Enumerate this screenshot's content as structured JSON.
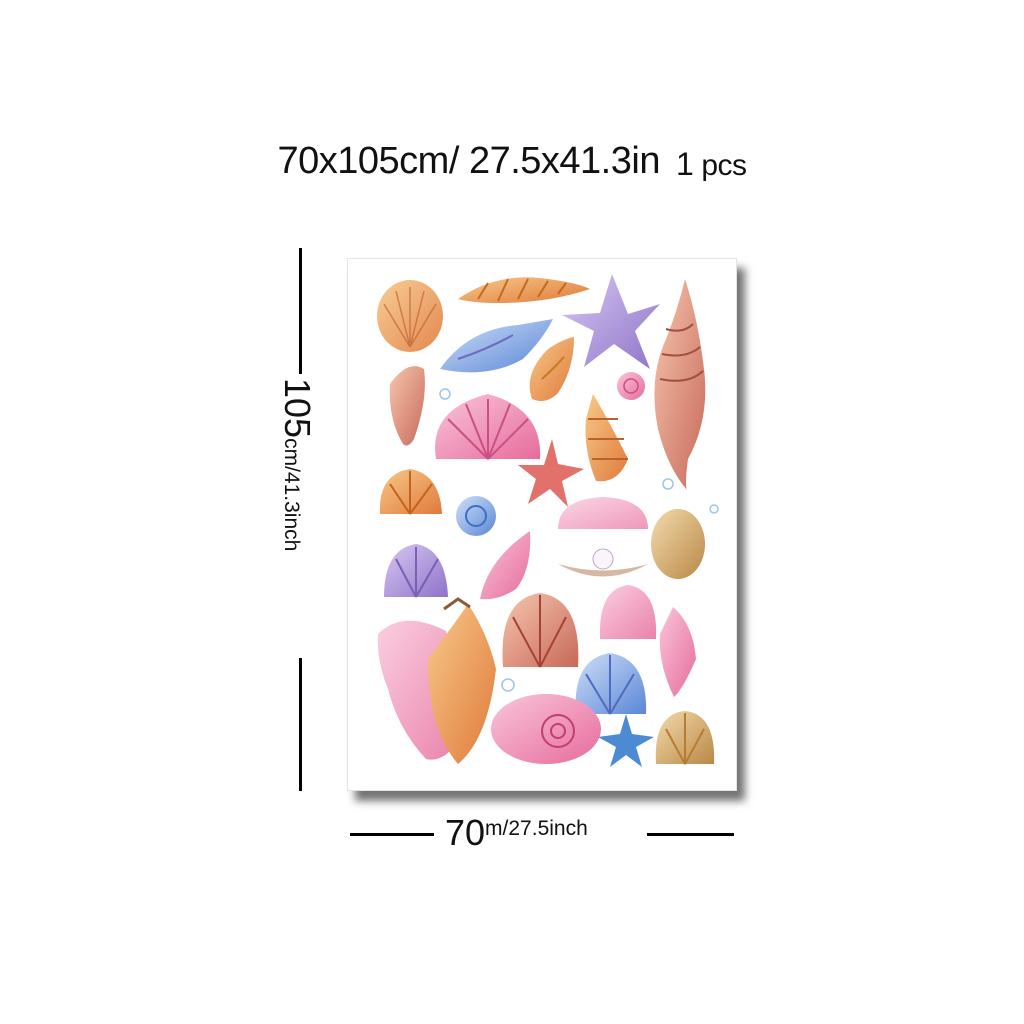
{
  "header": {
    "size_cm": "70x105cm/",
    "size_in": "27.5x41.3in",
    "qty_num": "1",
    "qty_unit": "pcs"
  },
  "height_dimension": {
    "value": "105",
    "unit": "cm/41.3inch"
  },
  "width_dimension": {
    "value": "70",
    "unit": "m/27.5inch"
  },
  "poster": {
    "artwork": "watercolor seashells",
    "palette": [
      "#f4a14a",
      "#e88aa6",
      "#a58fd6",
      "#8fb5e8",
      "#e46a6a",
      "#f1c27d"
    ]
  }
}
